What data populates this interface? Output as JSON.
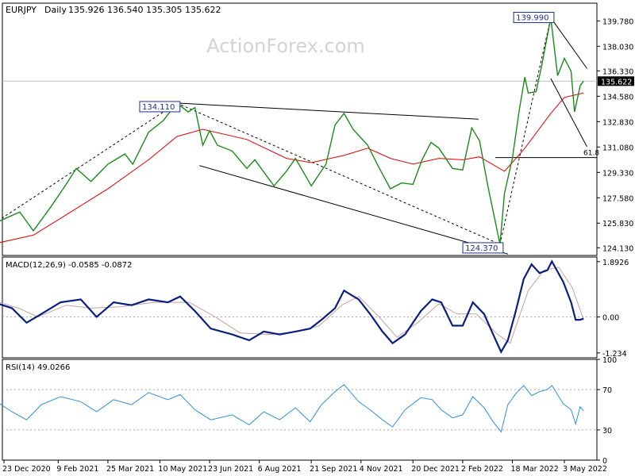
{
  "chart_data": [
    {
      "type": "candlestick",
      "symbol": "EURJPY",
      "timeframe": "Daily",
      "ohlc_open": "135.926",
      "ohlc_high": "136.540",
      "ohlc_low": "135.305",
      "ohlc_close": "135.622",
      "watermark": "ActionForex.com",
      "ylim": [
        123.6,
        141.0
      ],
      "y_ticks": [
        "139.780",
        "138.030",
        "136.330",
        "134.580",
        "132.830",
        "131.080",
        "129.330",
        "127.580",
        "125.830",
        "124.130"
      ],
      "current_price_label": "135.622",
      "current_price": 135.622,
      "annotations": [
        {
          "label": "139.990",
          "date": "2022-04-21",
          "price": 139.99
        },
        {
          "label": "134.110",
          "date": "2021-05-25",
          "price": 134.11
        },
        {
          "label": "124.370",
          "date": "2022-03-07",
          "price": 124.37
        }
      ],
      "fib_level": {
        "label": "61.8",
        "price": 130.35
      },
      "x_tick_labels": [
        "23 Dec 2020",
        "9 Feb 2021",
        "25 Mar 2021",
        "10 May 2021",
        "23 Jun 2021",
        "6 Aug 2021",
        "21 Sep 2021",
        "4 Nov 2021",
        "20 Dec 2021",
        "2 Feb 2022",
        "18 Mar 2022",
        "3 May 2022"
      ],
      "x_tick_dates": [
        "2020-12-23",
        "2021-02-09",
        "2021-03-25",
        "2021-05-10",
        "2021-06-23",
        "2021-08-06",
        "2021-09-21",
        "2021-11-04",
        "2021-12-20",
        "2022-02-02",
        "2022-03-18",
        "2022-05-03"
      ],
      "close_path": [
        [
          "2020-12-14",
          125.8
        ],
        [
          "2021-01-06",
          126.6
        ],
        [
          "2021-01-18",
          125.3
        ],
        [
          "2021-02-02",
          126.9
        ],
        [
          "2021-02-16",
          128.5
        ],
        [
          "2021-02-25",
          129.6
        ],
        [
          "2021-03-10",
          128.7
        ],
        [
          "2021-03-25",
          129.9
        ],
        [
          "2021-04-09",
          130.6
        ],
        [
          "2021-04-16",
          129.9
        ],
        [
          "2021-04-30",
          132.1
        ],
        [
          "2021-05-13",
          132.9
        ],
        [
          "2021-05-25",
          134.11
        ],
        [
          "2021-06-04",
          133.5
        ],
        [
          "2021-06-10",
          133.8
        ],
        [
          "2021-06-17",
          131.2
        ],
        [
          "2021-06-23",
          132.2
        ],
        [
          "2021-06-30",
          131.2
        ],
        [
          "2021-07-13",
          130.8
        ],
        [
          "2021-07-26",
          129.6
        ],
        [
          "2021-08-02",
          130.2
        ],
        [
          "2021-08-19",
          128.4
        ],
        [
          "2021-08-30",
          129.4
        ],
        [
          "2021-09-07",
          130.3
        ],
        [
          "2021-09-21",
          128.4
        ],
        [
          "2021-10-04",
          129.9
        ],
        [
          "2021-10-12",
          132.6
        ],
        [
          "2021-10-20",
          133.4
        ],
        [
          "2021-10-28",
          132.3
        ],
        [
          "2021-11-10",
          131.2
        ],
        [
          "2021-11-19",
          129.8
        ],
        [
          "2021-11-30",
          128.2
        ],
        [
          "2021-12-10",
          128.6
        ],
        [
          "2021-12-20",
          128.5
        ],
        [
          "2021-12-28",
          130.2
        ],
        [
          "2022-01-05",
          131.4
        ],
        [
          "2022-01-12",
          131.0
        ],
        [
          "2022-01-24",
          129.6
        ],
        [
          "2022-02-02",
          129.5
        ],
        [
          "2022-02-10",
          132.4
        ],
        [
          "2022-02-17",
          131.5
        ],
        [
          "2022-02-24",
          128.5
        ],
        [
          "2022-03-07",
          124.37
        ],
        [
          "2022-03-11",
          127.9
        ],
        [
          "2022-03-18",
          130.3
        ],
        [
          "2022-03-24",
          133.6
        ],
        [
          "2022-03-29",
          135.9
        ],
        [
          "2022-04-01",
          134.8
        ],
        [
          "2022-04-08",
          134.9
        ],
        [
          "2022-04-13",
          136.7
        ],
        [
          "2022-04-21",
          139.99
        ],
        [
          "2022-04-27",
          136.0
        ],
        [
          "2022-05-03",
          137.2
        ],
        [
          "2022-05-09",
          136.3
        ],
        [
          "2022-05-12",
          133.5
        ],
        [
          "2022-05-17",
          135.3
        ],
        [
          "2022-05-20",
          135.622
        ]
      ],
      "ma_path": [
        [
          "2020-12-14",
          124.4
        ],
        [
          "2021-01-18",
          125.0
        ],
        [
          "2021-02-16",
          126.4
        ],
        [
          "2021-03-25",
          128.2
        ],
        [
          "2021-04-30",
          130.2
        ],
        [
          "2021-05-25",
          131.8
        ],
        [
          "2021-06-17",
          132.3
        ],
        [
          "2021-07-26",
          131.6
        ],
        [
          "2021-08-30",
          130.3
        ],
        [
          "2021-09-21",
          130.0
        ],
        [
          "2021-10-20",
          130.5
        ],
        [
          "2021-11-10",
          131.0
        ],
        [
          "2021-11-30",
          130.3
        ],
        [
          "2021-12-20",
          129.9
        ],
        [
          "2022-01-12",
          130.3
        ],
        [
          "2022-02-02",
          130.2
        ],
        [
          "2022-02-17",
          130.4
        ],
        [
          "2022-03-11",
          129.4
        ],
        [
          "2022-03-29",
          131.0
        ],
        [
          "2022-04-21",
          133.4
        ],
        [
          "2022-05-03",
          134.5
        ],
        [
          "2022-05-20",
          134.8
        ]
      ],
      "trendlines": [
        {
          "from": [
            "2021-05-25",
            134.11
          ],
          "to": [
            "2022-02-16",
            133.0
          ]
        },
        {
          "from": [
            "2021-06-14",
            129.8
          ],
          "to": [
            "2022-03-14",
            123.7
          ]
        },
        {
          "from": [
            "2021-05-25",
            134.11
          ],
          "to": [
            "2022-03-07",
            124.37
          ],
          "dashed": true
        },
        {
          "from": [
            "2020-12-14",
            125.8
          ],
          "to": [
            "2021-05-25",
            134.11
          ],
          "dashed": true
        },
        {
          "from": [
            "2022-03-07",
            124.37
          ],
          "to": [
            "2022-04-21",
            139.99
          ],
          "dashed": true
        },
        {
          "from": [
            "2022-04-21",
            139.99
          ],
          "to": [
            "2022-05-23",
            136.5
          ]
        },
        {
          "from": [
            "2022-04-21",
            135.8
          ],
          "to": [
            "2022-05-23",
            131.1
          ]
        }
      ]
    },
    {
      "type": "line",
      "title": "MACD(12,26,9) -0.0585 -0.0872",
      "ylim": [
        -1.4,
        2.05
      ],
      "y_ticks": [
        "1.8926",
        "0.00",
        "-1.234"
      ],
      "current_value_label": "0.00",
      "macd_path": [
        [
          "2020-12-14",
          0.5
        ],
        [
          "2020-12-30",
          0.3
        ],
        [
          "2021-01-12",
          -0.2
        ],
        [
          "2021-01-25",
          0.1
        ],
        [
          "2021-02-11",
          0.5
        ],
        [
          "2021-03-01",
          0.6
        ],
        [
          "2021-03-15",
          0.0
        ],
        [
          "2021-03-30",
          0.5
        ],
        [
          "2021-04-15",
          0.4
        ],
        [
          "2021-04-30",
          0.6
        ],
        [
          "2021-05-17",
          0.5
        ],
        [
          "2021-05-28",
          0.7
        ],
        [
          "2021-06-10",
          0.2
        ],
        [
          "2021-06-24",
          -0.4
        ],
        [
          "2021-07-13",
          -0.6
        ],
        [
          "2021-07-28",
          -0.8
        ],
        [
          "2021-08-10",
          -0.5
        ],
        [
          "2021-08-24",
          -0.6
        ],
        [
          "2021-09-07",
          -0.5
        ],
        [
          "2021-09-20",
          -0.4
        ],
        [
          "2021-09-30",
          -0.1
        ],
        [
          "2021-10-12",
          0.3
        ],
        [
          "2021-10-20",
          0.9
        ],
        [
          "2021-11-02",
          0.6
        ],
        [
          "2021-11-12",
          0.1
        ],
        [
          "2021-11-23",
          -0.5
        ],
        [
          "2021-12-02",
          -0.9
        ],
        [
          "2021-12-13",
          -0.6
        ],
        [
          "2021-12-27",
          0.2
        ],
        [
          "2022-01-06",
          0.6
        ],
        [
          "2022-01-14",
          0.5
        ],
        [
          "2022-01-24",
          -0.3
        ],
        [
          "2022-02-02",
          -0.3
        ],
        [
          "2022-02-11",
          0.5
        ],
        [
          "2022-02-21",
          0.1
        ],
        [
          "2022-03-01",
          -0.6
        ],
        [
          "2022-03-08",
          -1.2
        ],
        [
          "2022-03-14",
          -0.8
        ],
        [
          "2022-03-21",
          0.2
        ],
        [
          "2022-03-28",
          1.3
        ],
        [
          "2022-04-04",
          1.8
        ],
        [
          "2022-04-11",
          1.5
        ],
        [
          "2022-04-18",
          1.6
        ],
        [
          "2022-04-22",
          1.9
        ],
        [
          "2022-05-02",
          1.2
        ],
        [
          "2022-05-09",
          0.5
        ],
        [
          "2022-05-13",
          -0.1
        ],
        [
          "2022-05-17",
          -0.1
        ],
        [
          "2022-05-20",
          -0.06
        ]
      ],
      "signal_path": [
        [
          "2020-12-14",
          0.55
        ],
        [
          "2021-01-05",
          0.3
        ],
        [
          "2021-01-22",
          0.0
        ],
        [
          "2021-02-16",
          0.4
        ],
        [
          "2021-03-10",
          0.3
        ],
        [
          "2021-04-05",
          0.35
        ],
        [
          "2021-05-05",
          0.5
        ],
        [
          "2021-06-05",
          0.5
        ],
        [
          "2021-06-28",
          0.0
        ],
        [
          "2021-07-20",
          -0.55
        ],
        [
          "2021-08-15",
          -0.6
        ],
        [
          "2021-09-10",
          -0.5
        ],
        [
          "2021-09-28",
          -0.3
        ],
        [
          "2021-10-18",
          0.4
        ],
        [
          "2021-11-02",
          0.7
        ],
        [
          "2021-11-20",
          0.0
        ],
        [
          "2021-12-06",
          -0.7
        ],
        [
          "2021-12-24",
          -0.2
        ],
        [
          "2022-01-12",
          0.45
        ],
        [
          "2022-01-28",
          0.1
        ],
        [
          "2022-02-14",
          0.1
        ],
        [
          "2022-03-05",
          -0.6
        ],
        [
          "2022-03-16",
          -0.9
        ],
        [
          "2022-04-01",
          0.9
        ],
        [
          "2022-04-15",
          1.6
        ],
        [
          "2022-04-28",
          1.7
        ],
        [
          "2022-05-10",
          1.0
        ],
        [
          "2022-05-20",
          -0.09
        ]
      ]
    },
    {
      "type": "line",
      "title": "RSI(14) 49.0266",
      "ylim": [
        0,
        100
      ],
      "y_ticks": [
        "100",
        "70",
        "30",
        "0"
      ],
      "levels": [
        70,
        30
      ],
      "rsi_path": [
        [
          "2020-12-14",
          60
        ],
        [
          "2020-12-30",
          48
        ],
        [
          "2021-01-12",
          40
        ],
        [
          "2021-01-25",
          55
        ],
        [
          "2021-02-11",
          63
        ],
        [
          "2021-03-01",
          58
        ],
        [
          "2021-03-15",
          48
        ],
        [
          "2021-03-30",
          60
        ],
        [
          "2021-04-15",
          55
        ],
        [
          "2021-04-30",
          67
        ],
        [
          "2021-05-17",
          60
        ],
        [
          "2021-05-28",
          65
        ],
        [
          "2021-06-10",
          50
        ],
        [
          "2021-06-24",
          40
        ],
        [
          "2021-07-13",
          45
        ],
        [
          "2021-07-28",
          35
        ],
        [
          "2021-08-10",
          48
        ],
        [
          "2021-08-24",
          40
        ],
        [
          "2021-09-07",
          52
        ],
        [
          "2021-09-20",
          38
        ],
        [
          "2021-09-30",
          55
        ],
        [
          "2021-10-12",
          68
        ],
        [
          "2021-10-20",
          75
        ],
        [
          "2021-11-02",
          58
        ],
        [
          "2021-11-12",
          50
        ],
        [
          "2021-11-23",
          40
        ],
        [
          "2021-12-02",
          33
        ],
        [
          "2021-12-13",
          50
        ],
        [
          "2021-12-27",
          62
        ],
        [
          "2022-01-06",
          60
        ],
        [
          "2022-01-14",
          50
        ],
        [
          "2022-01-24",
          42
        ],
        [
          "2022-02-02",
          45
        ],
        [
          "2022-02-11",
          63
        ],
        [
          "2022-02-21",
          52
        ],
        [
          "2022-03-01",
          38
        ],
        [
          "2022-03-08",
          28
        ],
        [
          "2022-03-14",
          55
        ],
        [
          "2022-03-21",
          66
        ],
        [
          "2022-03-28",
          74
        ],
        [
          "2022-04-04",
          64
        ],
        [
          "2022-04-11",
          68
        ],
        [
          "2022-04-18",
          70
        ],
        [
          "2022-04-22",
          74
        ],
        [
          "2022-05-02",
          56
        ],
        [
          "2022-05-09",
          50
        ],
        [
          "2022-05-13",
          36
        ],
        [
          "2022-05-17",
          53
        ],
        [
          "2022-05-20",
          49
        ]
      ]
    }
  ]
}
